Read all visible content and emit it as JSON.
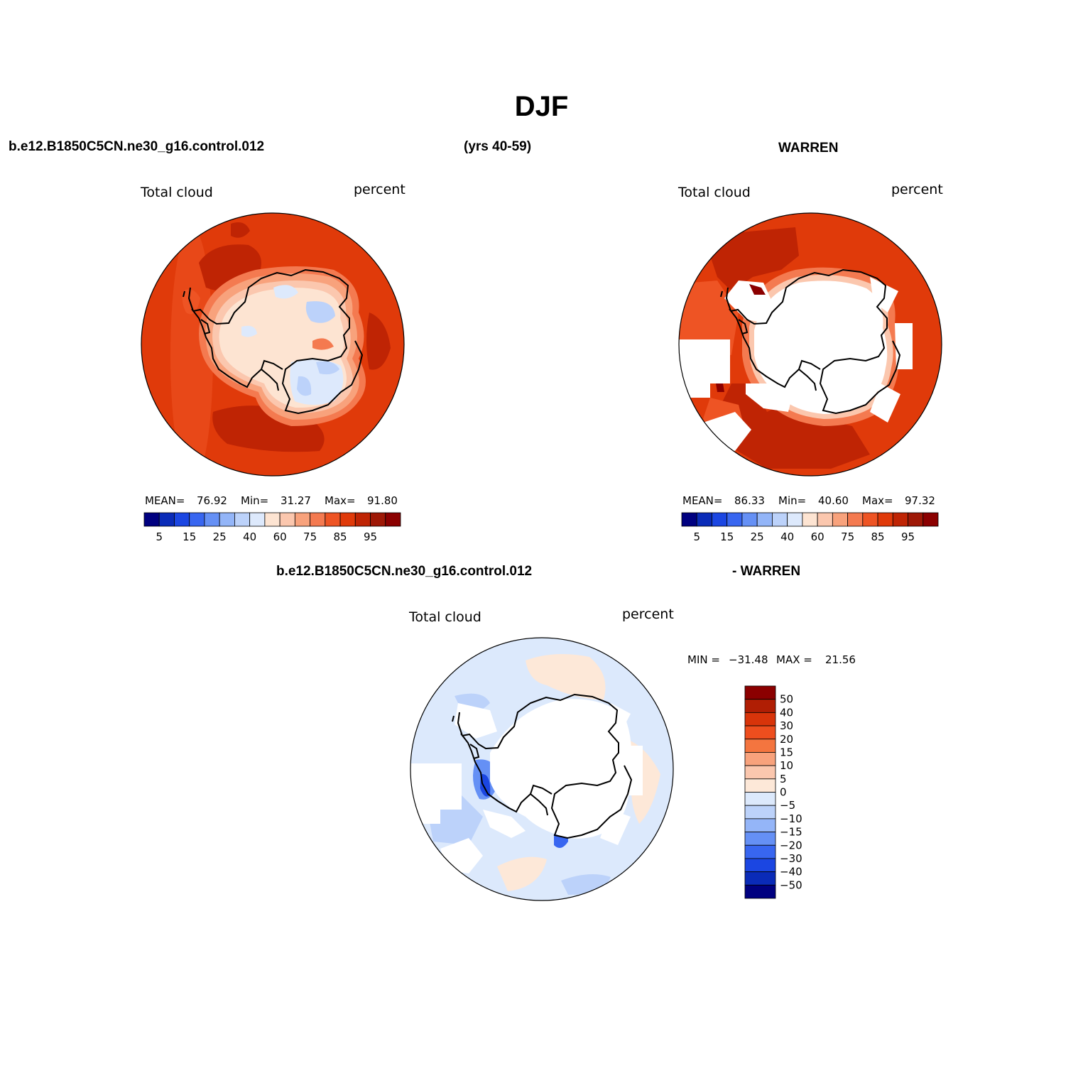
{
  "title": "DJF",
  "header": {
    "case_name": "b.e12.B1850C5CN.ne30_g16.control.012",
    "years": "(yrs 40-59)",
    "obs_name": "WARREN",
    "diff_case": "b.e12.B1850C5CN.ne30_g16.control.012",
    "diff_obs": "- WARREN"
  },
  "panels": [
    {
      "id": "model",
      "variable": "Total cloud",
      "units": "percent",
      "stats": {
        "mean_label": "MEAN=",
        "mean": "76.92",
        "min_label": "Min=",
        "min": "31.27",
        "max_label": "Max=",
        "max": "91.80"
      }
    },
    {
      "id": "obs",
      "variable": "Total cloud",
      "units": "percent",
      "stats": {
        "mean_label": "MEAN=",
        "mean": "86.33",
        "min_label": "Min=",
        "min": "40.60",
        "max_label": "Max=",
        "max": "97.32"
      }
    },
    {
      "id": "diff",
      "variable": "Total cloud",
      "units": "percent",
      "stats": {
        "min_label": "MIN =",
        "min": "−31.48",
        "max_label": "MAX =",
        "max": "21.56"
      }
    }
  ],
  "chart_data": [
    {
      "type": "heatmap",
      "projection": "south-polar-stereographic",
      "region": "Antarctica / Southern Ocean",
      "title": "Total cloud",
      "units": "percent",
      "colorbar": {
        "orientation": "horizontal",
        "tick_labels": [
          "5",
          "15",
          "25",
          "40",
          "60",
          "75",
          "85",
          "95"
        ],
        "levels": [
          5,
          10,
          15,
          20,
          25,
          30,
          40,
          50,
          60,
          65,
          70,
          75,
          80,
          85,
          90,
          95
        ],
        "colors": [
          "#000080",
          "#0a2bb8",
          "#1b46e2",
          "#3866f0",
          "#6590f5",
          "#93b5f8",
          "#bcd2fa",
          "#dde9fc",
          "#fde4d2",
          "#fbc7ae",
          "#f8a27c",
          "#f47a50",
          "#ee5424",
          "#e03a0a",
          "#bf2404",
          "#9e1806",
          "#8b0000"
        ]
      },
      "stats": {
        "mean": 76.92,
        "min": 31.27,
        "max": 91.8
      }
    },
    {
      "type": "heatmap",
      "projection": "south-polar-stereographic",
      "region": "Antarctica / Southern Ocean",
      "title": "Total cloud",
      "units": "percent",
      "colorbar": {
        "orientation": "horizontal",
        "tick_labels": [
          "5",
          "15",
          "25",
          "40",
          "60",
          "75",
          "85",
          "95"
        ]
      },
      "stats": {
        "mean": 86.33,
        "min": 40.6,
        "max": 97.32
      }
    },
    {
      "type": "heatmap",
      "projection": "south-polar-stereographic",
      "region": "Antarctica / Southern Ocean",
      "title": "Total cloud",
      "units": "percent",
      "colorbar": {
        "orientation": "vertical",
        "tick_labels": [
          "50",
          "40",
          "30",
          "20",
          "15",
          "10",
          "5",
          "0",
          "−5",
          "−10",
          "−15",
          "−20",
          "−30",
          "−40",
          "−50"
        ],
        "colors": [
          "#8b0000",
          "#b01e04",
          "#d8340a",
          "#ee4e1e",
          "#f4753f",
          "#f8a27c",
          "#fbc7ae",
          "#fde8d8",
          "#dce9fc",
          "#bcd2fa",
          "#94b5f8",
          "#6590f5",
          "#3866f0",
          "#1b46e2",
          "#0a2bb8",
          "#000080"
        ]
      },
      "stats": {
        "min": -31.48,
        "max": 21.56
      }
    }
  ]
}
